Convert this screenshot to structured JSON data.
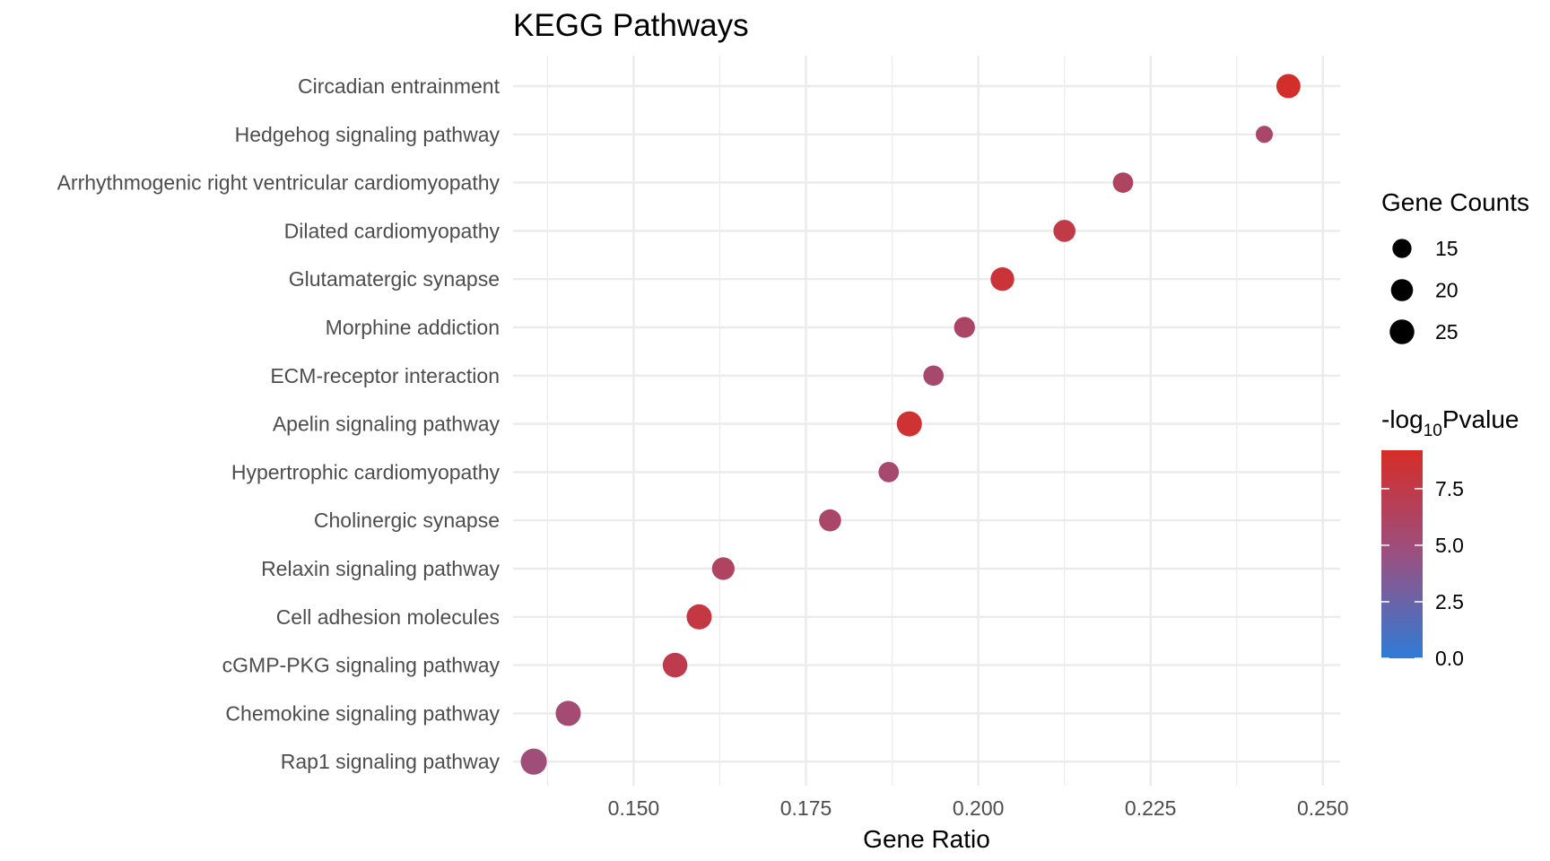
{
  "colors": {
    "low": "#2f7bd6",
    "mid": "#9a5081",
    "high": "#d62d26",
    "grid": "#ebebeb"
  },
  "chart_data": {
    "type": "scatter",
    "title": "KEGG Pathways",
    "xlabel": "Gene Ratio",
    "ylabel": "",
    "xlim": [
      0.1325,
      0.2525
    ],
    "xticks": [
      "0.150",
      "0.175",
      "0.200",
      "0.225",
      "0.250"
    ],
    "xtick_values": [
      0.15,
      0.175,
      0.2,
      0.225,
      0.25
    ],
    "grid": true,
    "legend_position": "right",
    "categories": [
      "Circadian entrainment",
      "Hedgehog signaling pathway",
      "Arrhythmogenic right ventricular cardiomyopathy",
      "Dilated cardiomyopathy",
      "Glutamatergic synapse",
      "Morphine addiction",
      "ECM-receptor interaction",
      "Apelin signaling pathway",
      "Hypertrophic cardiomyopathy",
      "Cholinergic synapse",
      "Relaxin signaling pathway",
      "Cell adhesion molecules",
      "cGMP-PKG signaling pathway",
      "Chemokine signaling pathway",
      "Rap1 signaling pathway"
    ],
    "points": [
      {
        "pathway": "Circadian entrainment",
        "gene_ratio": 0.245,
        "gene_count": 24,
        "neg_log10_pvalue": 9.0
      },
      {
        "pathway": "Hedgehog signaling pathway",
        "gene_ratio": 0.2415,
        "gene_count": 12,
        "neg_log10_pvalue": 5.8
      },
      {
        "pathway": "Arrhythmogenic right ventricular cardiomyopathy",
        "gene_ratio": 0.221,
        "gene_count": 17,
        "neg_log10_pvalue": 6.2
      },
      {
        "pathway": "Dilated cardiomyopathy",
        "gene_ratio": 0.2125,
        "gene_count": 20,
        "neg_log10_pvalue": 7.5
      },
      {
        "pathway": "Glutamatergic synapse",
        "gene_ratio": 0.2035,
        "gene_count": 23,
        "neg_log10_pvalue": 8.3
      },
      {
        "pathway": "Morphine addiction",
        "gene_ratio": 0.198,
        "gene_count": 18,
        "neg_log10_pvalue": 6.0
      },
      {
        "pathway": "ECM-receptor interaction",
        "gene_ratio": 0.1935,
        "gene_count": 17,
        "neg_log10_pvalue": 5.6
      },
      {
        "pathway": "Apelin signaling pathway",
        "gene_ratio": 0.19,
        "gene_count": 26,
        "neg_log10_pvalue": 8.6
      },
      {
        "pathway": "Hypertrophic cardiomyopathy",
        "gene_ratio": 0.187,
        "gene_count": 17,
        "neg_log10_pvalue": 5.5
      },
      {
        "pathway": "Cholinergic synapse",
        "gene_ratio": 0.1785,
        "gene_count": 20,
        "neg_log10_pvalue": 5.8
      },
      {
        "pathway": "Relaxin signaling pathway",
        "gene_ratio": 0.163,
        "gene_count": 21,
        "neg_log10_pvalue": 6.2
      },
      {
        "pathway": "Cell adhesion molecules",
        "gene_ratio": 0.1595,
        "gene_count": 26,
        "neg_log10_pvalue": 7.8
      },
      {
        "pathway": "cGMP-PKG signaling pathway",
        "gene_ratio": 0.156,
        "gene_count": 25,
        "neg_log10_pvalue": 7.3
      },
      {
        "pathway": "Chemokine signaling pathway",
        "gene_ratio": 0.1405,
        "gene_count": 26,
        "neg_log10_pvalue": 5.3
      },
      {
        "pathway": "Rap1 signaling pathway",
        "gene_ratio": 0.1355,
        "gene_count": 28,
        "neg_log10_pvalue": 5.0
      }
    ],
    "size_legend": {
      "title": "Gene Counts",
      "entries": [
        {
          "label": "15",
          "value": 15
        },
        {
          "label": "20",
          "value": 20
        },
        {
          "label": "25",
          "value": 25
        }
      ]
    },
    "color_legend": {
      "title_prefix": "-log",
      "title_subscript": "10",
      "title_suffix": "Pvalue",
      "range": [
        0,
        9.2
      ],
      "ticks": [
        {
          "label": "7.5",
          "value": 7.5
        },
        {
          "label": "5.0",
          "value": 5.0
        },
        {
          "label": "2.5",
          "value": 2.5
        },
        {
          "label": "0.0",
          "value": 0.0
        }
      ]
    }
  }
}
